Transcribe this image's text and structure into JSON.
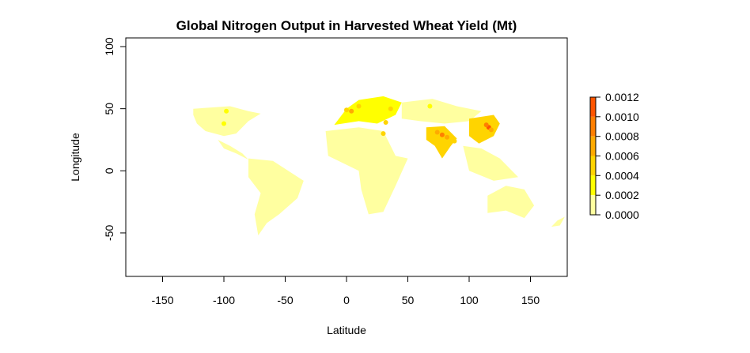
{
  "chart_data": {
    "type": "heatmap",
    "title": "Global Nitrogen Output in Harvested Wheat Yield (Mt)",
    "xlabel": "Latitude",
    "ylabel": "Longitude",
    "xlim": [
      -180,
      180
    ],
    "ylim": [
      -85,
      107
    ],
    "x_ticks": [
      -150,
      -100,
      -50,
      0,
      50,
      100,
      150
    ],
    "x_tick_labels": [
      "-150",
      "-100",
      "-50",
      "0",
      "50",
      "100",
      "150"
    ],
    "y_ticks": [
      -50,
      0,
      50,
      100
    ],
    "y_tick_labels": [
      "-50",
      "0",
      "50",
      "100"
    ],
    "grid": false,
    "legend": {
      "placement": "right",
      "levels": [
        0.0,
        0.0002,
        0.0004,
        0.0006,
        0.0008,
        0.001,
        0.0012
      ],
      "labels": [
        "0.0000",
        "0.0002",
        "0.0004",
        "0.0006",
        "0.0008",
        "0.0010",
        "0.0012"
      ],
      "colors": [
        "#FFFFA0",
        "#FFFF00",
        "#FFD400",
        "#FFAA00",
        "#FF7F00",
        "#FF5500",
        "#FF0000"
      ]
    },
    "regions": [
      {
        "name": "North America",
        "level": 0.00015,
        "polygon": [
          [
            -125,
            50
          ],
          [
            -95,
            52
          ],
          [
            -80,
            48
          ],
          [
            -70,
            46
          ],
          [
            -80,
            40
          ],
          [
            -90,
            30
          ],
          [
            -100,
            28
          ],
          [
            -115,
            32
          ],
          [
            -122,
            38
          ],
          [
            -125,
            45
          ]
        ]
      },
      {
        "name": "Central America",
        "level": 0.0001,
        "polygon": [
          [
            -105,
            25
          ],
          [
            -95,
            20
          ],
          [
            -85,
            14
          ],
          [
            -80,
            9
          ],
          [
            -90,
            14
          ],
          [
            -100,
            18
          ]
        ]
      },
      {
        "name": "South America",
        "level": 0.00015,
        "polygon": [
          [
            -80,
            10
          ],
          [
            -60,
            8
          ],
          [
            -35,
            -8
          ],
          [
            -40,
            -22
          ],
          [
            -55,
            -35
          ],
          [
            -65,
            -42
          ],
          [
            -72,
            -52
          ],
          [
            -75,
            -35
          ],
          [
            -70,
            -18
          ],
          [
            -80,
            -5
          ]
        ]
      },
      {
        "name": "Europe",
        "level": 0.0002,
        "polygon": [
          [
            -10,
            37
          ],
          [
            0,
            50
          ],
          [
            10,
            57
          ],
          [
            30,
            60
          ],
          [
            45,
            55
          ],
          [
            40,
            45
          ],
          [
            25,
            38
          ],
          [
            10,
            40
          ]
        ]
      },
      {
        "name": "Africa",
        "level": 0.0001,
        "polygon": [
          [
            -17,
            32
          ],
          [
            10,
            35
          ],
          [
            30,
            32
          ],
          [
            40,
            12
          ],
          [
            50,
            10
          ],
          [
            40,
            -12
          ],
          [
            30,
            -33
          ],
          [
            18,
            -35
          ],
          [
            12,
            -15
          ],
          [
            10,
            0
          ],
          [
            -15,
            12
          ]
        ]
      },
      {
        "name": "Central Asia",
        "level": 0.00015,
        "polygon": [
          [
            45,
            55
          ],
          [
            70,
            58
          ],
          [
            90,
            52
          ],
          [
            110,
            48
          ],
          [
            100,
            40
          ],
          [
            80,
            38
          ],
          [
            60,
            40
          ],
          [
            45,
            42
          ]
        ]
      },
      {
        "name": "South Asia",
        "level": 0.0004,
        "polygon": [
          [
            65,
            35
          ],
          [
            80,
            36
          ],
          [
            90,
            26
          ],
          [
            85,
            20
          ],
          [
            78,
            10
          ],
          [
            72,
            20
          ],
          [
            65,
            25
          ]
        ]
      },
      {
        "name": "China",
        "level": 0.0004,
        "polygon": [
          [
            100,
            42
          ],
          [
            120,
            45
          ],
          [
            125,
            38
          ],
          [
            120,
            28
          ],
          [
            108,
            22
          ],
          [
            100,
            28
          ]
        ]
      },
      {
        "name": "Southeast Asia",
        "level": 0.0001,
        "polygon": [
          [
            95,
            20
          ],
          [
            110,
            18
          ],
          [
            125,
            10
          ],
          [
            140,
            -5
          ],
          [
            120,
            -8
          ],
          [
            100,
            0
          ]
        ]
      },
      {
        "name": "Australia",
        "level": 0.0001,
        "polygon": [
          [
            115,
            -20
          ],
          [
            130,
            -12
          ],
          [
            145,
            -15
          ],
          [
            153,
            -28
          ],
          [
            145,
            -38
          ],
          [
            130,
            -32
          ],
          [
            115,
            -34
          ]
        ]
      },
      {
        "name": "New Zealand",
        "level": 0.0001,
        "polygon": [
          [
            167,
            -45
          ],
          [
            172,
            -40
          ],
          [
            178,
            -37
          ],
          [
            174,
            -44
          ]
        ]
      }
    ],
    "hotspots": [
      {
        "x": 78,
        "y": 29,
        "value": 0.0008
      },
      {
        "x": 74,
        "y": 31,
        "value": 0.0006
      },
      {
        "x": 82,
        "y": 27,
        "value": 0.0006
      },
      {
        "x": 116,
        "y": 35,
        "value": 0.001
      },
      {
        "x": 114,
        "y": 37,
        "value": 0.0008
      },
      {
        "x": 118,
        "y": 33,
        "value": 0.0006
      },
      {
        "x": 4,
        "y": 48,
        "value": 0.0006
      },
      {
        "x": 0,
        "y": 49,
        "value": 0.0005
      },
      {
        "x": 10,
        "y": 52,
        "value": 0.0004
      },
      {
        "x": 36,
        "y": 50,
        "value": 0.0004
      },
      {
        "x": 32,
        "y": 39,
        "value": 0.0004
      },
      {
        "x": 68,
        "y": 52,
        "value": 0.0003
      },
      {
        "x": -98,
        "y": 48,
        "value": 0.0003
      },
      {
        "x": -100,
        "y": 38,
        "value": 0.0003
      },
      {
        "x": 88,
        "y": 24,
        "value": 0.0004
      },
      {
        "x": 30,
        "y": 30,
        "value": 0.0004
      }
    ]
  }
}
